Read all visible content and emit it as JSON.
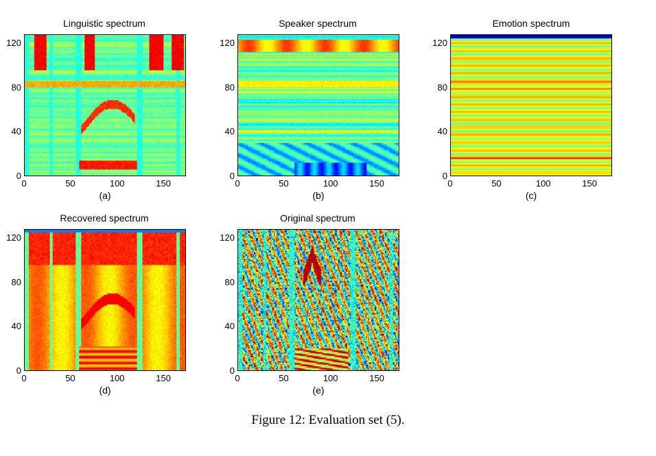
{
  "chart_data": [
    {
      "type": "heatmap",
      "title": "Linguistic spectrum",
      "sublabel": "(a)",
      "xlim": [
        0,
        175
      ],
      "ylim": [
        0,
        128
      ],
      "xticks": [
        "0",
        "50",
        "100",
        "150"
      ],
      "yticks": [
        "0",
        "40",
        "80",
        "120"
      ],
      "colormap": "jet",
      "pattern": "linguistic"
    },
    {
      "type": "heatmap",
      "title": "Speaker spectrum",
      "sublabel": "(b)",
      "xlim": [
        0,
        175
      ],
      "ylim": [
        0,
        128
      ],
      "xticks": [
        "0",
        "50",
        "100",
        "150"
      ],
      "yticks": [
        "0",
        "40",
        "80",
        "120"
      ],
      "colormap": "jet",
      "pattern": "speaker"
    },
    {
      "type": "heatmap",
      "title": "Emotion spectrum",
      "sublabel": "(c)",
      "xlim": [
        0,
        175
      ],
      "ylim": [
        0,
        128
      ],
      "xticks": [
        "0",
        "50",
        "100",
        "150"
      ],
      "yticks": [
        "0",
        "40",
        "80",
        "120"
      ],
      "colormap": "jet",
      "pattern": "emotion"
    },
    {
      "type": "heatmap",
      "title": "Recovered spectrum",
      "sublabel": "(d)",
      "xlim": [
        0,
        175
      ],
      "ylim": [
        0,
        128
      ],
      "xticks": [
        "0",
        "50",
        "100",
        "150"
      ],
      "yticks": [
        "0",
        "40",
        "80",
        "120"
      ],
      "colormap": "jet",
      "pattern": "recovered"
    },
    {
      "type": "heatmap",
      "title": "Original spectrum",
      "sublabel": "(e)",
      "xlim": [
        0,
        175
      ],
      "ylim": [
        0,
        128
      ],
      "xticks": [
        "0",
        "50",
        "100",
        "150"
      ],
      "yticks": [
        "0",
        "40",
        "80",
        "120"
      ],
      "colormap": "jet",
      "pattern": "original"
    }
  ],
  "caption": "Figure 12: Evaluation set (5)."
}
